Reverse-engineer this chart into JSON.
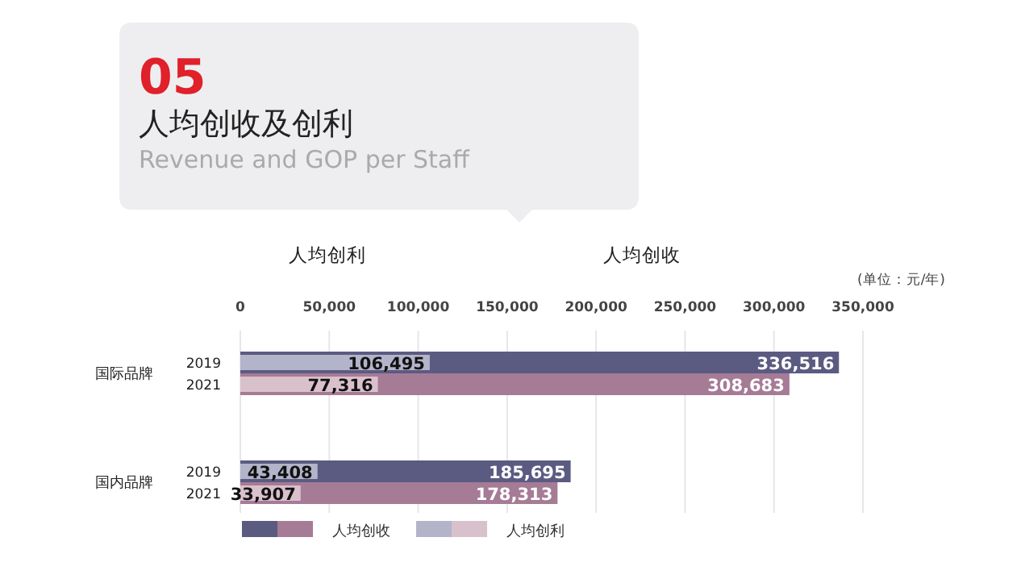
{
  "chart_data": {
    "type": "bar",
    "orientation": "horizontal",
    "title": "人均创收及创利",
    "subtitle": "Revenue and GOP per Staff",
    "annotations": [
      "05",
      "人均创利",
      "人均创收",
      "(单位：元/年)",
      "国际品牌",
      "国内品牌"
    ],
    "categories": [
      "2019",
      "2021",
      null,
      null,
      null,
      "2019",
      "2021"
    ],
    "series": [
      {
        "name": "人均创收",
        "colors": [
          "#5b5b82",
          "#a67b96",
          null,
          null,
          null,
          "#5b5b82",
          "#a67b96"
        ],
        "values": [
          336516,
          308683,
          null,
          null,
          null,
          185695,
          178313
        ],
        "value_labels": [
          "336,516",
          "308,683",
          null,
          null,
          null,
          "185,695",
          "178,313"
        ]
      },
      {
        "name": "人均创利",
        "colors": [
          "#b3b3c9",
          "#d9c1cc",
          null,
          null,
          null,
          "#b3b3c9",
          "#d9c1cc"
        ],
        "values": [
          106495,
          77316,
          null,
          null,
          null,
          43408,
          33907
        ],
        "value_labels": [
          "106,495",
          "77,316",
          null,
          null,
          null,
          "43,408",
          "33,907"
        ]
      }
    ],
    "xlim": [
      0,
      350000
    ],
    "xticks": [
      0,
      {
        "value": 50000,
        "label": "50,000"
      },
      {
        "value": 100000,
        "label": "100,000"
      },
      {
        "value": 150000,
        "label": "150,000"
      },
      {
        "value": 200000,
        "label": "200,000"
      },
      {
        "value": 250000,
        "label": "250,000"
      },
      {
        "value": 300000,
        "label": "300,000"
      },
      {
        "value": 350000,
        "label": "350,000"
      }
    ],
    "grid": "x",
    "legend": "bottom"
  }
}
